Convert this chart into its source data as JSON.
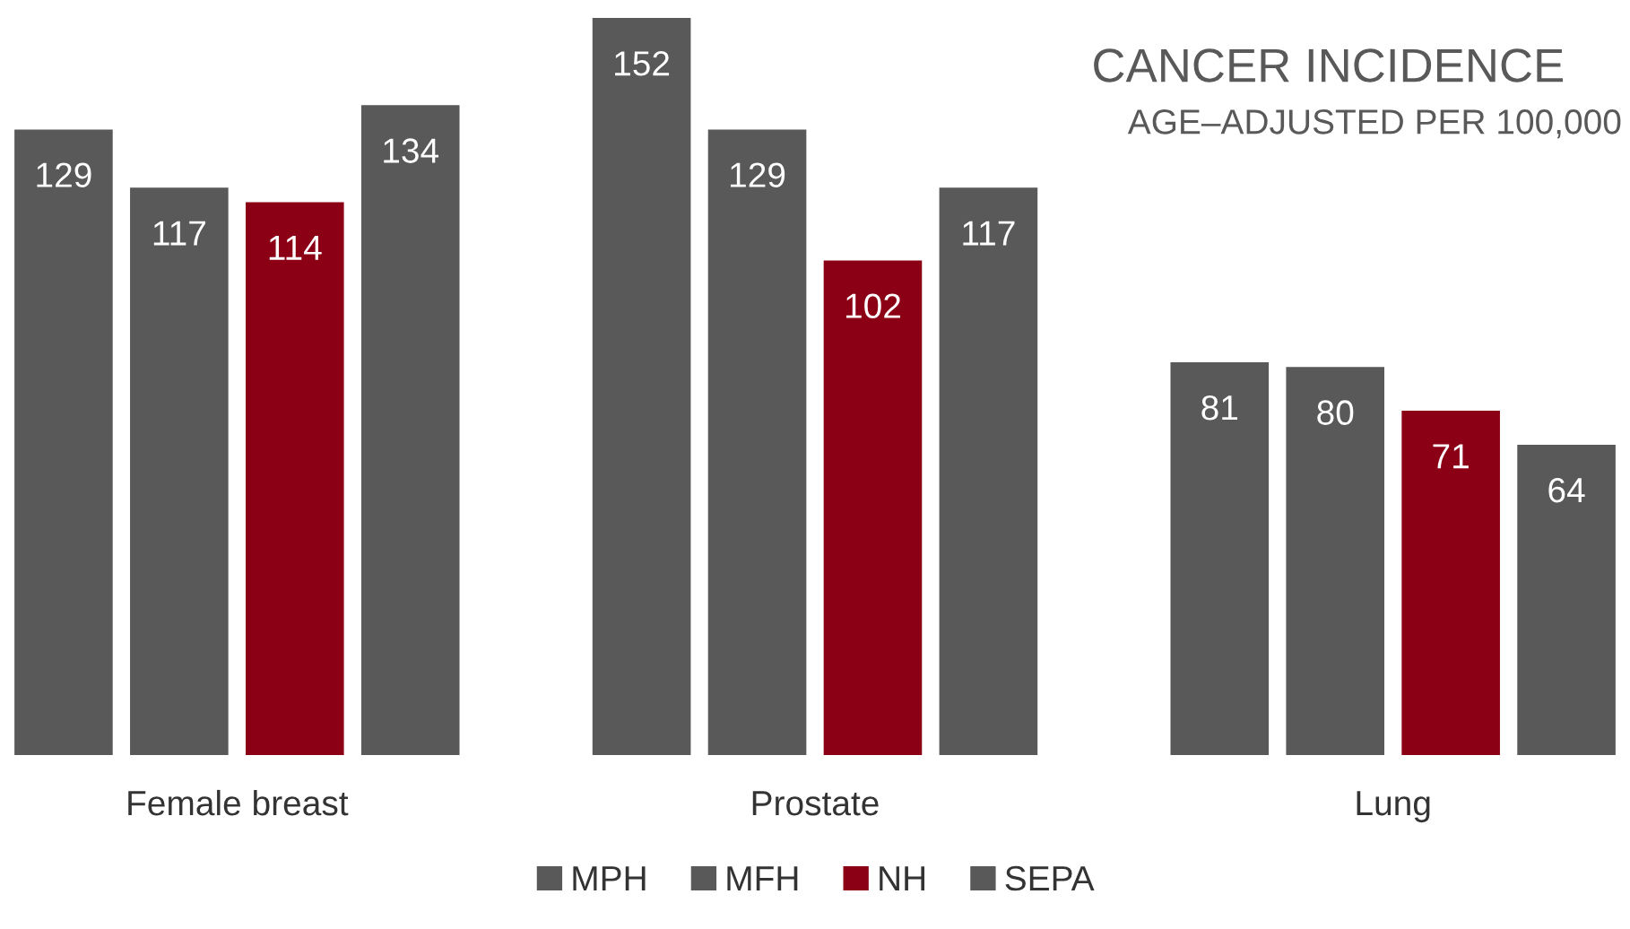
{
  "chart_data": {
    "type": "bar",
    "title": "CANCER INCIDENCE",
    "subtitle": "AGE–ADJUSTED PER 100,000",
    "categories": [
      "Female breast",
      "Prostate",
      "Lung"
    ],
    "series": [
      {
        "name": "MPH",
        "color": "#595959",
        "values": [
          129,
          152,
          81
        ]
      },
      {
        "name": "MFH",
        "color": "#595959",
        "values": [
          117,
          129,
          80
        ]
      },
      {
        "name": "NH",
        "color": "#8b0015",
        "values": [
          114,
          102,
          71
        ]
      },
      {
        "name": "SEPA",
        "color": "#595959",
        "values": [
          134,
          117,
          64
        ]
      }
    ],
    "data_labels": true,
    "legend": "bottom",
    "grid": false,
    "tick_labels": "x"
  }
}
